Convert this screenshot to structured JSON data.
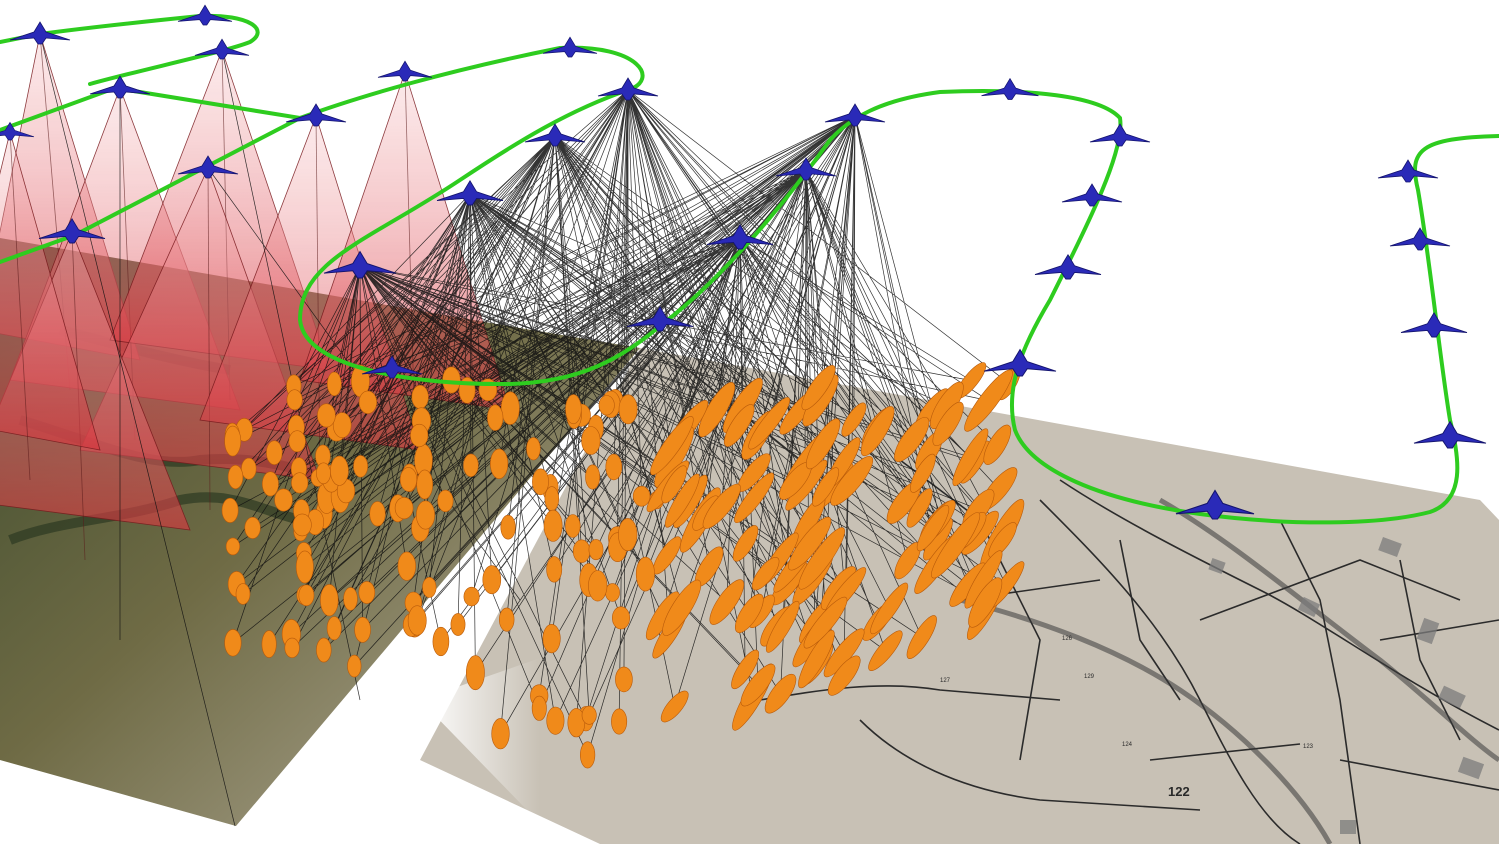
{
  "scene": {
    "colors": {
      "background": "#ffffff",
      "flight_path": "#2ecc1f",
      "aircraft": "#2a2ab8",
      "camera_footprint": "#e8545a",
      "error_ellipsoid": "#f08a1a",
      "ray": "#111111",
      "cadastral_map": "#c9c2b6",
      "aerial_field": "#8a7a60"
    },
    "icons": {
      "aircraft": "aircraft-icon",
      "footprint": "camera-footprint-pyramid",
      "ellipsoid": "error-ellipsoid"
    },
    "parcel_labels": [
      "122",
      "123",
      "124",
      "126",
      "127",
      "129"
    ]
  }
}
